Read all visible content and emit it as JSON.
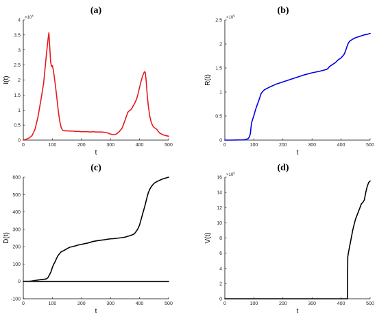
{
  "chart_data": [
    {
      "panel": "(a)",
      "type": "line",
      "xlabel": "t",
      "ylabel": "I(t)",
      "xlim": [
        0,
        500
      ],
      "ylim": [
        0,
        40000
      ],
      "x_ticks": [
        0,
        100,
        200,
        300,
        400,
        500
      ],
      "y_ticks": [
        0,
        5000,
        10000,
        15000,
        20000,
        25000,
        30000,
        35000,
        40000
      ],
      "x_tick_labels": [
        "0",
        "100",
        "200",
        "300",
        "400",
        "500"
      ],
      "y_tick_labels": [
        "0",
        "0.5",
        "1",
        "1.5",
        "2",
        "2.5",
        "3",
        "3.5",
        "4"
      ],
      "multiplier": {
        "base": "×10",
        "exp": "4"
      },
      "grid": false,
      "series": [
        {
          "color": "#e8181b",
          "x": [
            0,
            10,
            20,
            30,
            40,
            50,
            60,
            70,
            75,
            80,
            85,
            88,
            91,
            94,
            97,
            100,
            103,
            106,
            110,
            115,
            120,
            125,
            130,
            135,
            140,
            150,
            160,
            170,
            180,
            190,
            200,
            210,
            220,
            230,
            240,
            250,
            260,
            270,
            280,
            290,
            300,
            310,
            320,
            330,
            340,
            345,
            350,
            355,
            360,
            365,
            370,
            375,
            380,
            385,
            390,
            395,
            400,
            405,
            410,
            415,
            418,
            420,
            423,
            426,
            430,
            435,
            440,
            445,
            450,
            455,
            460,
            465,
            470,
            480,
            490,
            500
          ],
          "y": [
            0,
            300,
            700,
            1500,
            3500,
            7500,
            13000,
            19000,
            24000,
            29000,
            33500,
            35700,
            31000,
            26000,
            24500,
            24800,
            23500,
            21500,
            18500,
            14500,
            10000,
            6500,
            4300,
            3300,
            3100,
            3100,
            3000,
            3000,
            2900,
            2900,
            2800,
            2800,
            2800,
            2700,
            2800,
            2700,
            2700,
            2700,
            2600,
            2400,
            2000,
            1800,
            2000,
            2800,
            4000,
            5300,
            6600,
            8000,
            9300,
            9800,
            10100,
            10800,
            11700,
            12600,
            13700,
            15500,
            17500,
            19500,
            21200,
            22400,
            22800,
            22300,
            19500,
            15500,
            11500,
            8000,
            6000,
            4800,
            4200,
            3900,
            3500,
            2800,
            2300,
            1800,
            1500,
            1300
          ]
        }
      ]
    },
    {
      "panel": "(b)",
      "type": "line",
      "xlabel": "t",
      "ylabel": "R(t)",
      "xlim": [
        0,
        500
      ],
      "ylim": [
        0,
        250000
      ],
      "x_ticks": [
        0,
        100,
        200,
        300,
        400,
        500
      ],
      "y_ticks": [
        0,
        50000,
        100000,
        150000,
        200000,
        250000
      ],
      "x_tick_labels": [
        "0",
        "100",
        "200",
        "300",
        "400",
        "500"
      ],
      "y_tick_labels": [
        "0",
        "0.5",
        "1",
        "1.5",
        "2",
        "2.5"
      ],
      "multiplier": {
        "base": "×10",
        "exp": "5"
      },
      "grid": false,
      "series": [
        {
          "color": "#0000e6",
          "x": [
            0,
            20,
            40,
            60,
            70,
            80,
            85,
            88,
            90,
            92,
            95,
            100,
            105,
            110,
            115,
            120,
            125,
            130,
            135,
            140,
            150,
            160,
            175,
            200,
            225,
            250,
            275,
            300,
            325,
            350,
            355,
            360,
            370,
            380,
            390,
            400,
            410,
            415,
            420,
            425,
            430,
            435,
            440,
            450,
            460,
            470,
            480,
            490,
            500
          ],
          "y": [
            0,
            0,
            200,
            500,
            1000,
            3000,
            7000,
            14000,
            26000,
            36000,
            42000,
            51000,
            62000,
            71000,
            79000,
            88000,
            97000,
            101000,
            104000,
            106000,
            109000,
            112000,
            116000,
            121000,
            126000,
            131000,
            136000,
            140000,
            143000,
            147000,
            149000,
            153000,
            157000,
            161000,
            167000,
            171000,
            178000,
            185000,
            194000,
            202000,
            206000,
            208000,
            210000,
            213000,
            215000,
            217000,
            219000,
            220000,
            222000
          ]
        }
      ]
    },
    {
      "panel": "(c)",
      "type": "line",
      "xlabel": "t",
      "ylabel": "D(t)",
      "xlim": [
        0,
        500
      ],
      "ylim": [
        -100,
        600
      ],
      "x_ticks": [
        0,
        100,
        200,
        300,
        400,
        500
      ],
      "y_ticks": [
        -100,
        0,
        100,
        200,
        300,
        400,
        500,
        600
      ],
      "x_tick_labels": [
        "0",
        "100",
        "200",
        "300",
        "400",
        "500"
      ],
      "y_tick_labels": [
        "-100",
        "0",
        "100",
        "200",
        "300",
        "400",
        "500",
        "600"
      ],
      "grid": false,
      "series": [
        {
          "color": "#000000",
          "x": [
            0,
            20,
            30,
            40,
            50,
            60,
            70,
            75,
            80,
            85,
            90,
            95,
            100,
            105,
            110,
            115,
            120,
            125,
            130,
            140,
            150,
            160,
            170,
            180,
            190,
            200,
            210,
            220,
            230,
            240,
            250,
            260,
            270,
            280,
            290,
            300,
            310,
            320,
            330,
            340,
            350,
            360,
            370,
            380,
            385,
            390,
            395,
            400,
            405,
            410,
            415,
            420,
            425,
            430,
            435,
            440,
            445,
            450,
            460,
            470,
            480,
            490,
            500
          ],
          "y": [
            0,
            0,
            2,
            5,
            8,
            10,
            12,
            13,
            15,
            22,
            38,
            55,
            80,
            100,
            115,
            135,
            150,
            160,
            170,
            178,
            188,
            197,
            200,
            205,
            210,
            213,
            217,
            220,
            225,
            230,
            233,
            236,
            238,
            240,
            243,
            245,
            246,
            248,
            250,
            252,
            255,
            260,
            265,
            272,
            280,
            292,
            305,
            325,
            355,
            385,
            415,
            445,
            480,
            510,
            530,
            545,
            555,
            565,
            575,
            583,
            590,
            595,
            600
          ]
        },
        {
          "color": "#000000",
          "x": [
            0,
            500
          ],
          "y": [
            0,
            0
          ]
        }
      ]
    },
    {
      "panel": "(d)",
      "type": "line",
      "xlabel": "t",
      "ylabel": "V(t)",
      "xlim": [
        0,
        500
      ],
      "ylim": [
        0,
        1600000
      ],
      "x_ticks": [
        0,
        100,
        200,
        300,
        400,
        500
      ],
      "y_ticks": [
        0,
        200000,
        400000,
        600000,
        800000,
        1000000,
        1200000,
        1400000,
        1600000
      ],
      "x_tick_labels": [
        "0",
        "100",
        "200",
        "300",
        "400",
        "500"
      ],
      "y_tick_labels": [
        "0",
        "2",
        "4",
        "6",
        "8",
        "10",
        "12",
        "14",
        "16"
      ],
      "multiplier": {
        "base": "×10",
        "exp": "5"
      },
      "grid": false,
      "series": [
        {
          "color": "#000000",
          "x": [
            0,
            100,
            200,
            300,
            400,
            422,
            423,
            425,
            430,
            435,
            440,
            445,
            450,
            455,
            460,
            465,
            470,
            475,
            480,
            485,
            490,
            495,
            500
          ],
          "y": [
            0,
            0,
            0,
            0,
            0,
            0,
            550000,
            600000,
            700000,
            800000,
            900000,
            980000,
            1050000,
            1100000,
            1150000,
            1200000,
            1250000,
            1270000,
            1300000,
            1400000,
            1480000,
            1530000,
            1550000
          ]
        }
      ]
    }
  ]
}
